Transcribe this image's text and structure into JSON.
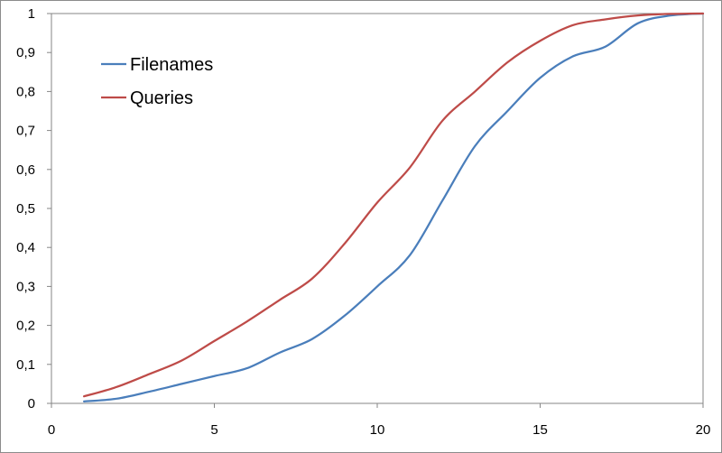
{
  "chart_data": {
    "type": "line",
    "title": "",
    "xlabel": "",
    "ylabel": "",
    "xlim": [
      0,
      20
    ],
    "ylim": [
      0,
      1
    ],
    "x_ticks": [
      "0",
      "5",
      "10",
      "15",
      "20"
    ],
    "y_ticks": [
      "0",
      "0,1",
      "0,2",
      "0,3",
      "0,4",
      "0,5",
      "0,6",
      "0,7",
      "0,8",
      "0,9",
      "1"
    ],
    "grid": false,
    "legend_position": "top-left",
    "x": [
      1,
      2,
      3,
      4,
      5,
      6,
      7,
      8,
      9,
      10,
      11,
      12,
      13,
      14,
      15,
      16,
      17,
      18,
      19,
      20
    ],
    "series": [
      {
        "name": "Filenames",
        "color": "#4a7ebb",
        "values": [
          0.005,
          0.012,
          0.03,
          0.05,
          0.07,
          0.09,
          0.13,
          0.165,
          0.225,
          0.3,
          0.38,
          0.52,
          0.66,
          0.75,
          0.835,
          0.89,
          0.915,
          0.975,
          0.995,
          1.0
        ]
      },
      {
        "name": "Queries",
        "color": "#be4b48",
        "values": [
          0.018,
          0.042,
          0.075,
          0.11,
          0.16,
          0.21,
          0.265,
          0.32,
          0.41,
          0.515,
          0.605,
          0.725,
          0.8,
          0.875,
          0.93,
          0.97,
          0.985,
          0.995,
          0.999,
          1.0
        ]
      }
    ]
  }
}
